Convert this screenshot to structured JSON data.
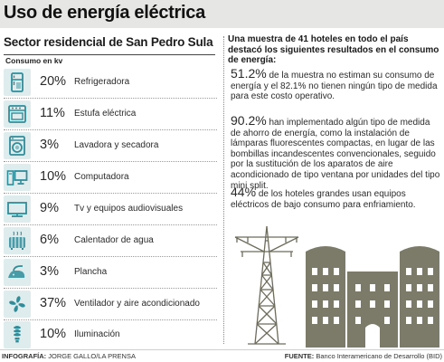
{
  "header": {
    "title": "Uso de energía eléctrica"
  },
  "left": {
    "heading": "Sector residencial de San Pedro Sula",
    "unit_label": "Consumo en kv",
    "items": [
      {
        "percent": "20%",
        "label": "Refrigeradora",
        "icon": "refrigerator-icon"
      },
      {
        "percent": "11%",
        "label": "Estufa eléctrica",
        "icon": "stove-icon"
      },
      {
        "percent": "3%",
        "label": "Lavadora y secadora",
        "icon": "washing-machine-icon"
      },
      {
        "percent": "10%",
        "label": "Computadora",
        "icon": "computer-icon"
      },
      {
        "percent": "9%",
        "label": "Tv y equipos audiovisuales",
        "icon": "tv-icon"
      },
      {
        "percent": "6%",
        "label": "Calentador de agua",
        "icon": "water-heater-icon"
      },
      {
        "percent": "3%",
        "label": "Plancha",
        "icon": "iron-icon"
      },
      {
        "percent": "37%",
        "label": "Ventilador y aire acondicionado",
        "icon": "fan-icon"
      },
      {
        "percent": "10%",
        "label": "Iluminación",
        "icon": "light-bulb-icon"
      }
    ]
  },
  "right": {
    "intro": "Una muestra de 41 hoteles en todo el país destacó los siguientes resultados en el consumo de energía:",
    "stats": [
      {
        "percent": "51.2%",
        "text": "de la muestra no estiman su consumo de energía y el 82.1% no tienen ningún tipo de medida para este costo operativo."
      },
      {
        "percent": "90.2%",
        "text": "han implementado algún tipo de medida de ahorro de energía, como la instalación de lámparas fluorescentes compactas, en lugar de las bombillas incandescentes convencionales, seguido por la sustitución de los aparatos de aire acondicionado de tipo ventana por unidades del tipo mini split."
      },
      {
        "percent": "44%",
        "text": "de los hoteles grandes usan equipos eléctricos de bajo consumo para enfriamiento."
      }
    ]
  },
  "footer": {
    "credit_label": "INFOGRAFÍA:",
    "credit_value": "JORGE GALLO/LA PRENSA",
    "source_label": "FUENTE:",
    "source_value": "Banco Interamericano de Desarrollo (BID)"
  },
  "colors": {
    "icon_tile": "#dfecee",
    "icon_teal": "#2f8d9a",
    "building": "#7c7a68",
    "title_band": "#e6e6e4"
  }
}
